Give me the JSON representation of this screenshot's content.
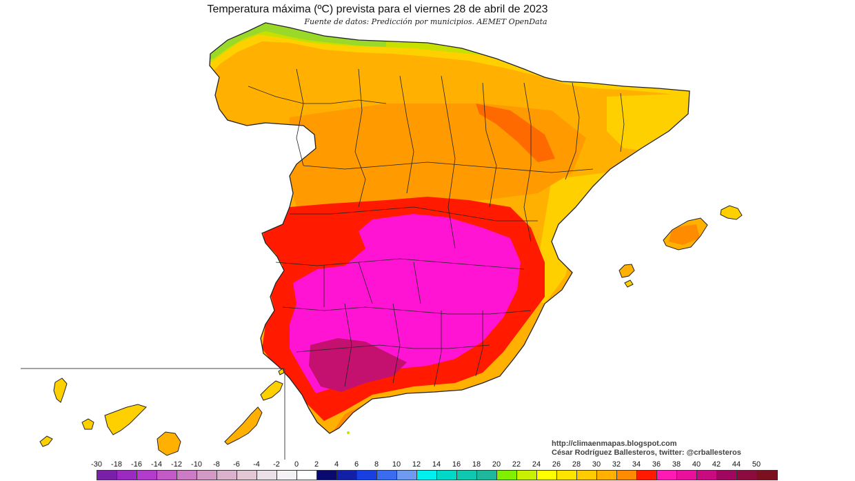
{
  "header": {
    "title": "Temperatura máxima (ºC) prevista para el viernes 28 de abril de 2023",
    "subtitle": "Fuente de datos: Predicción por municipios. AEMET OpenData"
  },
  "credits": {
    "url": "http://climaenmapas.blogspot.com",
    "author": "César Rodríguez Ballesteros, twitter: @crballesteros"
  },
  "legend": {
    "labels": [
      "-30",
      "-18",
      "-16",
      "-14",
      "-12",
      "-10",
      "-8",
      "-6",
      "-4",
      "-2",
      "0",
      "2",
      "4",
      "6",
      "8",
      "10",
      "12",
      "14",
      "16",
      "18",
      "20",
      "22",
      "24",
      "26",
      "28",
      "30",
      "32",
      "34",
      "36",
      "38",
      "40",
      "42",
      "44",
      "50"
    ],
    "colors": [
      "#7a1fa8",
      "#9b2bc0",
      "#b43ccc",
      "#c45ac8",
      "#cc7cc4",
      "#d49ac6",
      "#dab2cc",
      "#e2c8d4",
      "#ebe0e8",
      "#f4f2f4",
      "#ffffff",
      "#0a0a6e",
      "#1220a8",
      "#1840e0",
      "#3a6cf0",
      "#6e9af0",
      "#00f0f0",
      "#00d8c8",
      "#10c8b0",
      "#20b89c",
      "#80f000",
      "#c8f000",
      "#ffff00",
      "#ffe400",
      "#ffcc00",
      "#ffb000",
      "#ff8c00",
      "#ff1a00",
      "#ff1ab4",
      "#e8109c",
      "#c80c80",
      "#a00860",
      "#8c0c40",
      "#7a1020"
    ]
  },
  "map_colors": {
    "cool_green": "#9ad82a",
    "yellow": "#ffd000",
    "light_orange": "#ffb000",
    "orange": "#ff8c00",
    "red": "#ff1a00",
    "magenta": "#ff14d4",
    "deep_magenta": "#c4106e",
    "borders": "#222222"
  }
}
